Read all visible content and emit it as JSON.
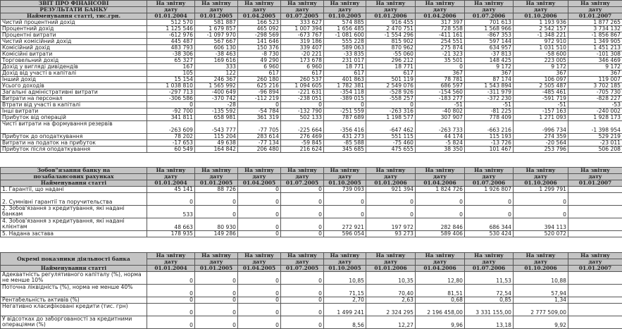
{
  "header_label": "На звітну дату",
  "header_label_line1": "На звітну",
  "header_label_line2": "дату",
  "dates": [
    "01.01.2004",
    "01.01.2005",
    "01.04.2005",
    "01.07.2005",
    "01.10.2005",
    "01.01.2006",
    "01.04.2006",
    "01.07.2006",
    "01.10.2006",
    "01.01.2007"
  ],
  "sections": [
    {
      "title_line1": "ЗВІТ ПРО ФІНАНСОВІ",
      "title_line2": "РЕЗУЛЬТАТИ БАНКУ",
      "subtitle": "Найменування статті, тис.грн.",
      "rows": [
        {
          "label": "Чистий процентний дохід",
          "values": [
            "512 570",
            "581 887",
            "166 523",
            "333 627",
            "574 885",
            "916 455",
            "317 397",
            "701 613",
            "1 193 936",
            "1 877 265"
          ]
        },
        {
          "label": "Процентний  дохід",
          "values": [
            "1 125 546",
            "1 679 857",
            "465 092",
            "1 007 394",
            "1 656 485",
            "2 470 751",
            "728 558",
            "1 568 966",
            "2 542 157",
            "3 734 132"
          ]
        },
        {
          "label": "Процентні витрати",
          "values": [
            "-612 976",
            "-1 097 970",
            "-298 569",
            "-673 767",
            "-1 081 600",
            "-1 554 296",
            "-411 161",
            "-867 353",
            "-1 348 221",
            "-1 856 867"
          ]
        },
        {
          "label": "Чистий комісійний дохід",
          "values": [
            "445 487",
            "567 667",
            "141 646",
            "319 186",
            "555 228",
            "815 902",
            "254 551",
            "597 144",
            "972 910",
            "1 349 905"
          ]
        },
        {
          "label": "Комісійний дохід",
          "values": [
            "483 793",
            "606 130",
            "150 376",
            "339 407",
            "589 063",
            "870 962",
            "275 874",
            "634 957",
            "1 031 510",
            "1 451 213"
          ]
        },
        {
          "label": "Комісійні витрати",
          "values": [
            "-38 306",
            "-38 463",
            "-8 730",
            "-20 221",
            "-33 835",
            "-55 060",
            "-21 323",
            "-37 813",
            "-58 600",
            "-101 308"
          ]
        },
        {
          "label": "Торговельний дохід",
          "values": [
            "65 327",
            "169 616",
            "49 290",
            "173 678",
            "231 017",
            "296 212",
            "35 501",
            "148 425",
            "223 005",
            "346 469"
          ]
        },
        {
          "label": "Дохід у вигляді дивідендів",
          "values": [
            "167",
            "333",
            "6 960",
            "6 960",
            "18 771",
            "18 771",
            "0",
            "9 172",
            "9 172",
            "9 172"
          ]
        },
        {
          "label": "Дохід від участі в капіталі",
          "values": [
            "105",
            "122",
            "617",
            "617",
            "617",
            "617",
            "367",
            "367",
            "367",
            "367"
          ]
        },
        {
          "label": "Інший дохід",
          "values": [
            "15 154",
            "246 367",
            "260 180",
            "260 537",
            "401 863",
            "501 119",
            "78 781",
            "87 174",
            "106 097",
            "119 007"
          ]
        },
        {
          "label": "Усього доходів",
          "values": [
            "1 038 810",
            "1 565 992",
            "625 216",
            "1 094 605",
            "1 782 381",
            "2 549 076",
            "686 597",
            "1 543 894",
            "2 505 487",
            "3 702 185"
          ]
        },
        {
          "label": "Загальні адміністративні витрати",
          "values": [
            "-297 713",
            "-400 649",
            "-96 894",
            "-221 631",
            "-354 118",
            "-528 926",
            "-154 560",
            "-311 979",
            "-485 461",
            "-705 730"
          ]
        },
        {
          "label": "Витрати на персонал",
          "values": [
            "-306 586",
            "-370 742",
            "-112 219",
            "-238 051",
            "-389 015",
            "-558 257",
            "-183 277",
            "-372 230",
            "-591 719",
            "-828 227"
          ]
        },
        {
          "label": "Втрати від участі в капіталі",
          "values": [
            "0",
            "-28",
            "0",
            "0",
            "0",
            "0",
            "-51",
            "-51",
            "-51",
            "-53"
          ]
        },
        {
          "label": "Інші витрати",
          "values": [
            "-92 700",
            "-135 592",
            "-54 784",
            "-132 790",
            "-251 559",
            "-263 316",
            "-40 802",
            "-81 225",
            "-157 163",
            "-240 002"
          ]
        },
        {
          "label": "Прибуток від операцій",
          "values": [
            "341 811",
            "658 981",
            "361 319",
            "502 133",
            "787 689",
            "1 198 577",
            "307 907",
            "778 409",
            "1 271 093",
            "1 928 173"
          ]
        },
        {
          "label": "Чисті витрати на формування резервів",
          "values": [
            "-263 609",
            "-543 777",
            "-77 705",
            "-225 664",
            "-356 416",
            "-647 462",
            "-263 733",
            "-663 216",
            "-996 734",
            "-1 398 954"
          ],
          "tall": true
        },
        {
          "label": "Прибуток до оподаткування",
          "values": [
            "78 202",
            "115 204",
            "283 614",
            "276 469",
            "431 273",
            "551 115",
            "44 174",
            "115 193",
            "274 359",
            "529 219"
          ]
        },
        {
          "label": "Витрати на податок на прибуток",
          "values": [
            "-17 653",
            "49 638",
            "-77 134",
            "-59 845",
            "-85 588",
            "-75 460",
            "-5 824",
            "-13 726",
            "-20 564",
            "-23 011"
          ]
        },
        {
          "label": "Прибуток після оподаткування",
          "values": [
            "60 549",
            "164 842",
            "206 480",
            "216 624",
            "345 685",
            "475 655",
            "38 350",
            "101 467",
            "253 796",
            "506 208"
          ]
        }
      ]
    },
    {
      "title_line1": "Зобов\"язання банку на",
      "title_line2": "позабалансових рахунках",
      "subtitle": "Найменування статті",
      "rows": [
        {
          "label": "1. Гарантії, що надані",
          "values": [
            "45 141",
            "88 726",
            "0",
            "0",
            "739 093",
            "921 394",
            "1 824 726",
            "1 926 807",
            "1 299 791",
            ""
          ]
        },
        {
          "label": "2. Сумнівні гарантії та поручительства",
          "values": [
            "0",
            "0",
            "0",
            "0",
            "0",
            "0",
            "0",
            "0",
            "0",
            ""
          ],
          "tall": true,
          "bottom": true
        },
        {
          "label": "2. Зобов'язання з кредитування, які надані банкам",
          "values": [
            "533",
            "0",
            "0",
            "0",
            "0",
            "0",
            "0",
            "0",
            "0",
            ""
          ],
          "tall": true
        },
        {
          "label": "4. Зобов'язання з кредитування, які надані клієнтам",
          "values": [
            "48 663",
            "80 930",
            "0",
            "0",
            "272 921",
            "197 972",
            "282 846",
            "686 344",
            "394 113",
            ""
          ],
          "tall": true
        },
        {
          "label": "5. Надана застава",
          "values": [
            "178 935",
            "149 286",
            "0",
            "0",
            "596 054",
            "93 273",
            "589 406",
            "530 424",
            "520 072",
            ""
          ]
        }
      ]
    },
    {
      "title_line1": "Окремі показники діяльності банка",
      "title_line2": "",
      "subtitle": "Найменування статті",
      "rows": [
        {
          "label": "Адекватність регулятивного капіталу (%), норма не менше 10%",
          "values": [
            "0",
            "0",
            "0",
            "0",
            "10,85",
            "10,35",
            "12,80",
            "11,53",
            "10,88",
            ""
          ],
          "tall": true
        },
        {
          "label": "Поточна ліквідність (%), норма не менше 40%",
          "values": [
            "0",
            "0",
            "0",
            "0",
            "71,15",
            "70,40",
            "81,51",
            "72,54",
            "57,94",
            ""
          ],
          "tall": true
        },
        {
          "label": "Рентабельність активів (%)",
          "values": [
            "0",
            "0",
            "0",
            "0",
            "2,70",
            "2,63",
            "0,68",
            "0,85",
            "1,34",
            ""
          ]
        },
        {
          "label": "Негативно класифіковані кредити (тис. грн)",
          "values": [
            "0",
            "0",
            "0",
            "0",
            "1 499 241",
            "2 324 295",
            "2 196 458,00",
            "3 331 155,00",
            "2 777 509,00",
            ""
          ],
          "tall": true
        },
        {
          "label": "У відсотках до заборгованості за кредитними операціями (%)",
          "values": [
            "0",
            "0",
            "0",
            "0",
            "8,56",
            "12,27",
            "9,96",
            "13,18",
            "9,92",
            ""
          ],
          "tall": true
        }
      ]
    }
  ]
}
